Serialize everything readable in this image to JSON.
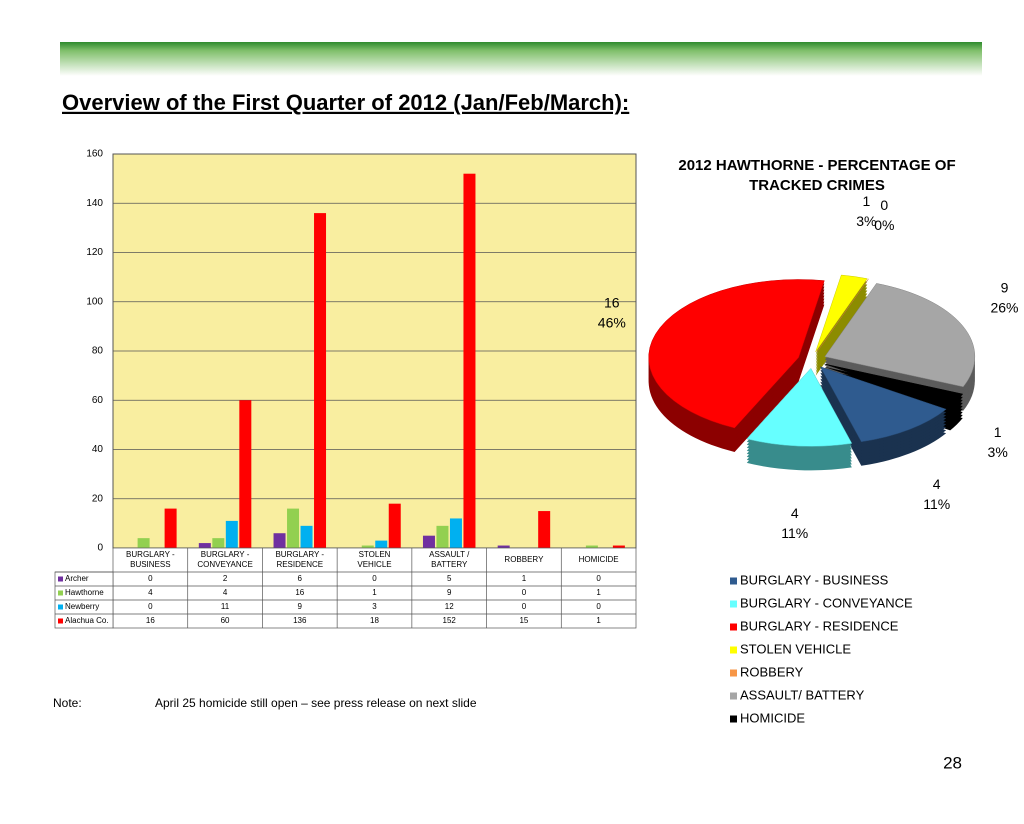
{
  "slide_title": "Overview of the First Quarter of 2012 (Jan/Feb/March):",
  "note_label": "Note:",
  "note": "April 25 homicide still open – see  press release on next slide",
  "page_number": "28",
  "chart_data": [
    {
      "type": "bar",
      "categories": [
        "BURGLARY - BUSINESS",
        "BURGLARY - CONVEYANCE",
        "BURGLARY - RESIDENCE",
        "STOLEN VEHICLE",
        "ASSAULT / BATTERY",
        "ROBBERY",
        "HOMICIDE"
      ],
      "series": [
        {
          "name": "Archer",
          "color": "#7030a0",
          "values": [
            0,
            2,
            6,
            0,
            5,
            1,
            0
          ]
        },
        {
          "name": "Hawthorne",
          "color": "#92d050",
          "values": [
            4,
            4,
            16,
            1,
            9,
            0,
            1
          ]
        },
        {
          "name": "Newberry",
          "color": "#00b0f0",
          "values": [
            0,
            11,
            9,
            3,
            12,
            0,
            0
          ]
        },
        {
          "name": "Alachua Co.",
          "color": "#ff0000",
          "values": [
            16,
            60,
            136,
            18,
            152,
            15,
            1
          ]
        }
      ],
      "ylim": [
        0,
        160
      ],
      "yticks": [
        0,
        20,
        40,
        60,
        80,
        100,
        120,
        140,
        160
      ],
      "grid": true
    },
    {
      "type": "pie",
      "title": "2012 HAWTHORNE - PERCENTAGE OF TRACKED CRIMES",
      "categories": [
        "BURGLARY - BUSINESS",
        "BURGLARY - CONVEYANCE",
        "BURGLARY - RESIDENCE",
        "STOLEN VEHICLE",
        "ROBBERY",
        "ASSAULT/ BATTERY",
        "HOMICIDE"
      ],
      "values": [
        4,
        4,
        16,
        1,
        0,
        9,
        1
      ],
      "percent_labels": [
        "11%",
        "11%",
        "46%",
        "3%",
        "0%",
        "26%",
        "3%"
      ],
      "colors": [
        "#2f5b8f",
        "#66ffff",
        "#ff0000",
        "#ffff00",
        "#f79646",
        "#a6a6a6",
        "#000000"
      ]
    }
  ]
}
